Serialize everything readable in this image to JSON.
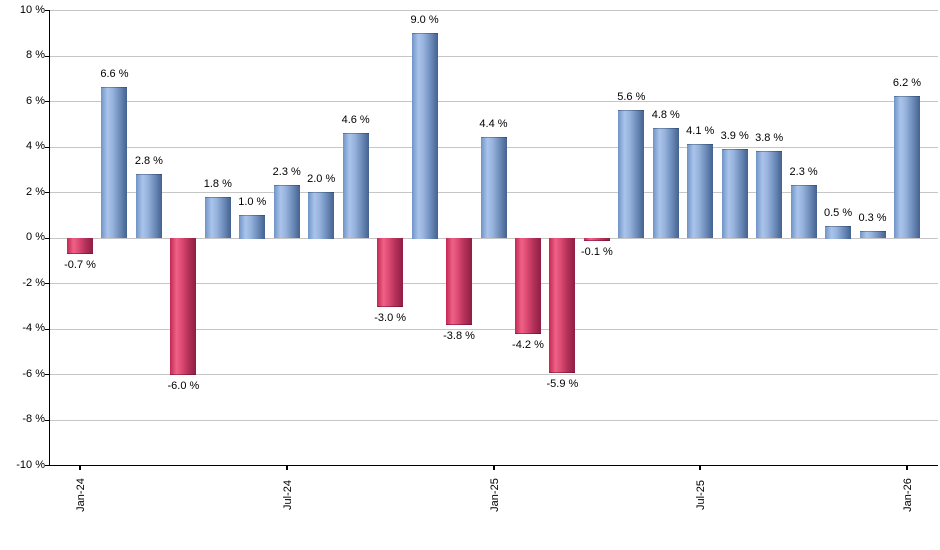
{
  "chart_data": {
    "type": "bar",
    "title": "",
    "xlabel": "",
    "ylabel": "",
    "ylim": [
      -10,
      10
    ],
    "grid": "horizontal gridlines every 2 %, bars drawn over gridlines",
    "legend": "none",
    "x_tick_labels": [
      "Jan-24",
      "Jul-24",
      "Jan-25",
      "Jul-25",
      "Jan-26"
    ],
    "x_tick_month_index": [
      0,
      6,
      12,
      18,
      24
    ],
    "y_tick_labels": [
      "10 %",
      "8 %",
      "6 %",
      "4 %",
      "2 %",
      "0 %",
      "-2 %",
      "-4 %",
      "-6 %",
      "-8 %",
      "-10 %"
    ],
    "y_tick_values": [
      10,
      8,
      6,
      4,
      2,
      0,
      -2,
      -4,
      -6,
      -8,
      -10
    ],
    "values": [
      -0.7,
      6.6,
      2.8,
      -6.0,
      1.8,
      1.0,
      2.3,
      2.0,
      4.6,
      -3.0,
      9.0,
      -3.8,
      4.4,
      -4.2,
      -5.9,
      -0.1,
      5.6,
      4.8,
      4.1,
      3.9,
      3.8,
      2.3,
      0.5,
      0.3,
      6.2
    ],
    "bar_labels": [
      "-0.7 %",
      "6.6 %",
      "2.8 %",
      "-6.0 %",
      "1.8 %",
      "1.0 %",
      "2.3 %",
      "2.0 %",
      "4.6 %",
      "-3.0 %",
      "9.0 %",
      "-3.8 %",
      "4.4 %",
      "-4.2 %",
      "-5.9 %",
      "-0.1 %",
      "5.6 %",
      "4.8 %",
      "4.1 %",
      "3.9 %",
      "3.8 %",
      "2.3 %",
      "0.5 %",
      "0.3 %",
      "6.2 %"
    ],
    "colors": {
      "positive_bar": "#7d9fd2",
      "positive_bar_highlight": "#aac4eb",
      "positive_bar_edge": "#44628f",
      "negative_bar": "#d04068",
      "negative_bar_highlight": "#ef6188",
      "negative_bar_edge": "#8e1e42",
      "gridline": "#c6c6c6",
      "axis": "#000000",
      "text": "#000000",
      "background": "#ffffff"
    }
  }
}
